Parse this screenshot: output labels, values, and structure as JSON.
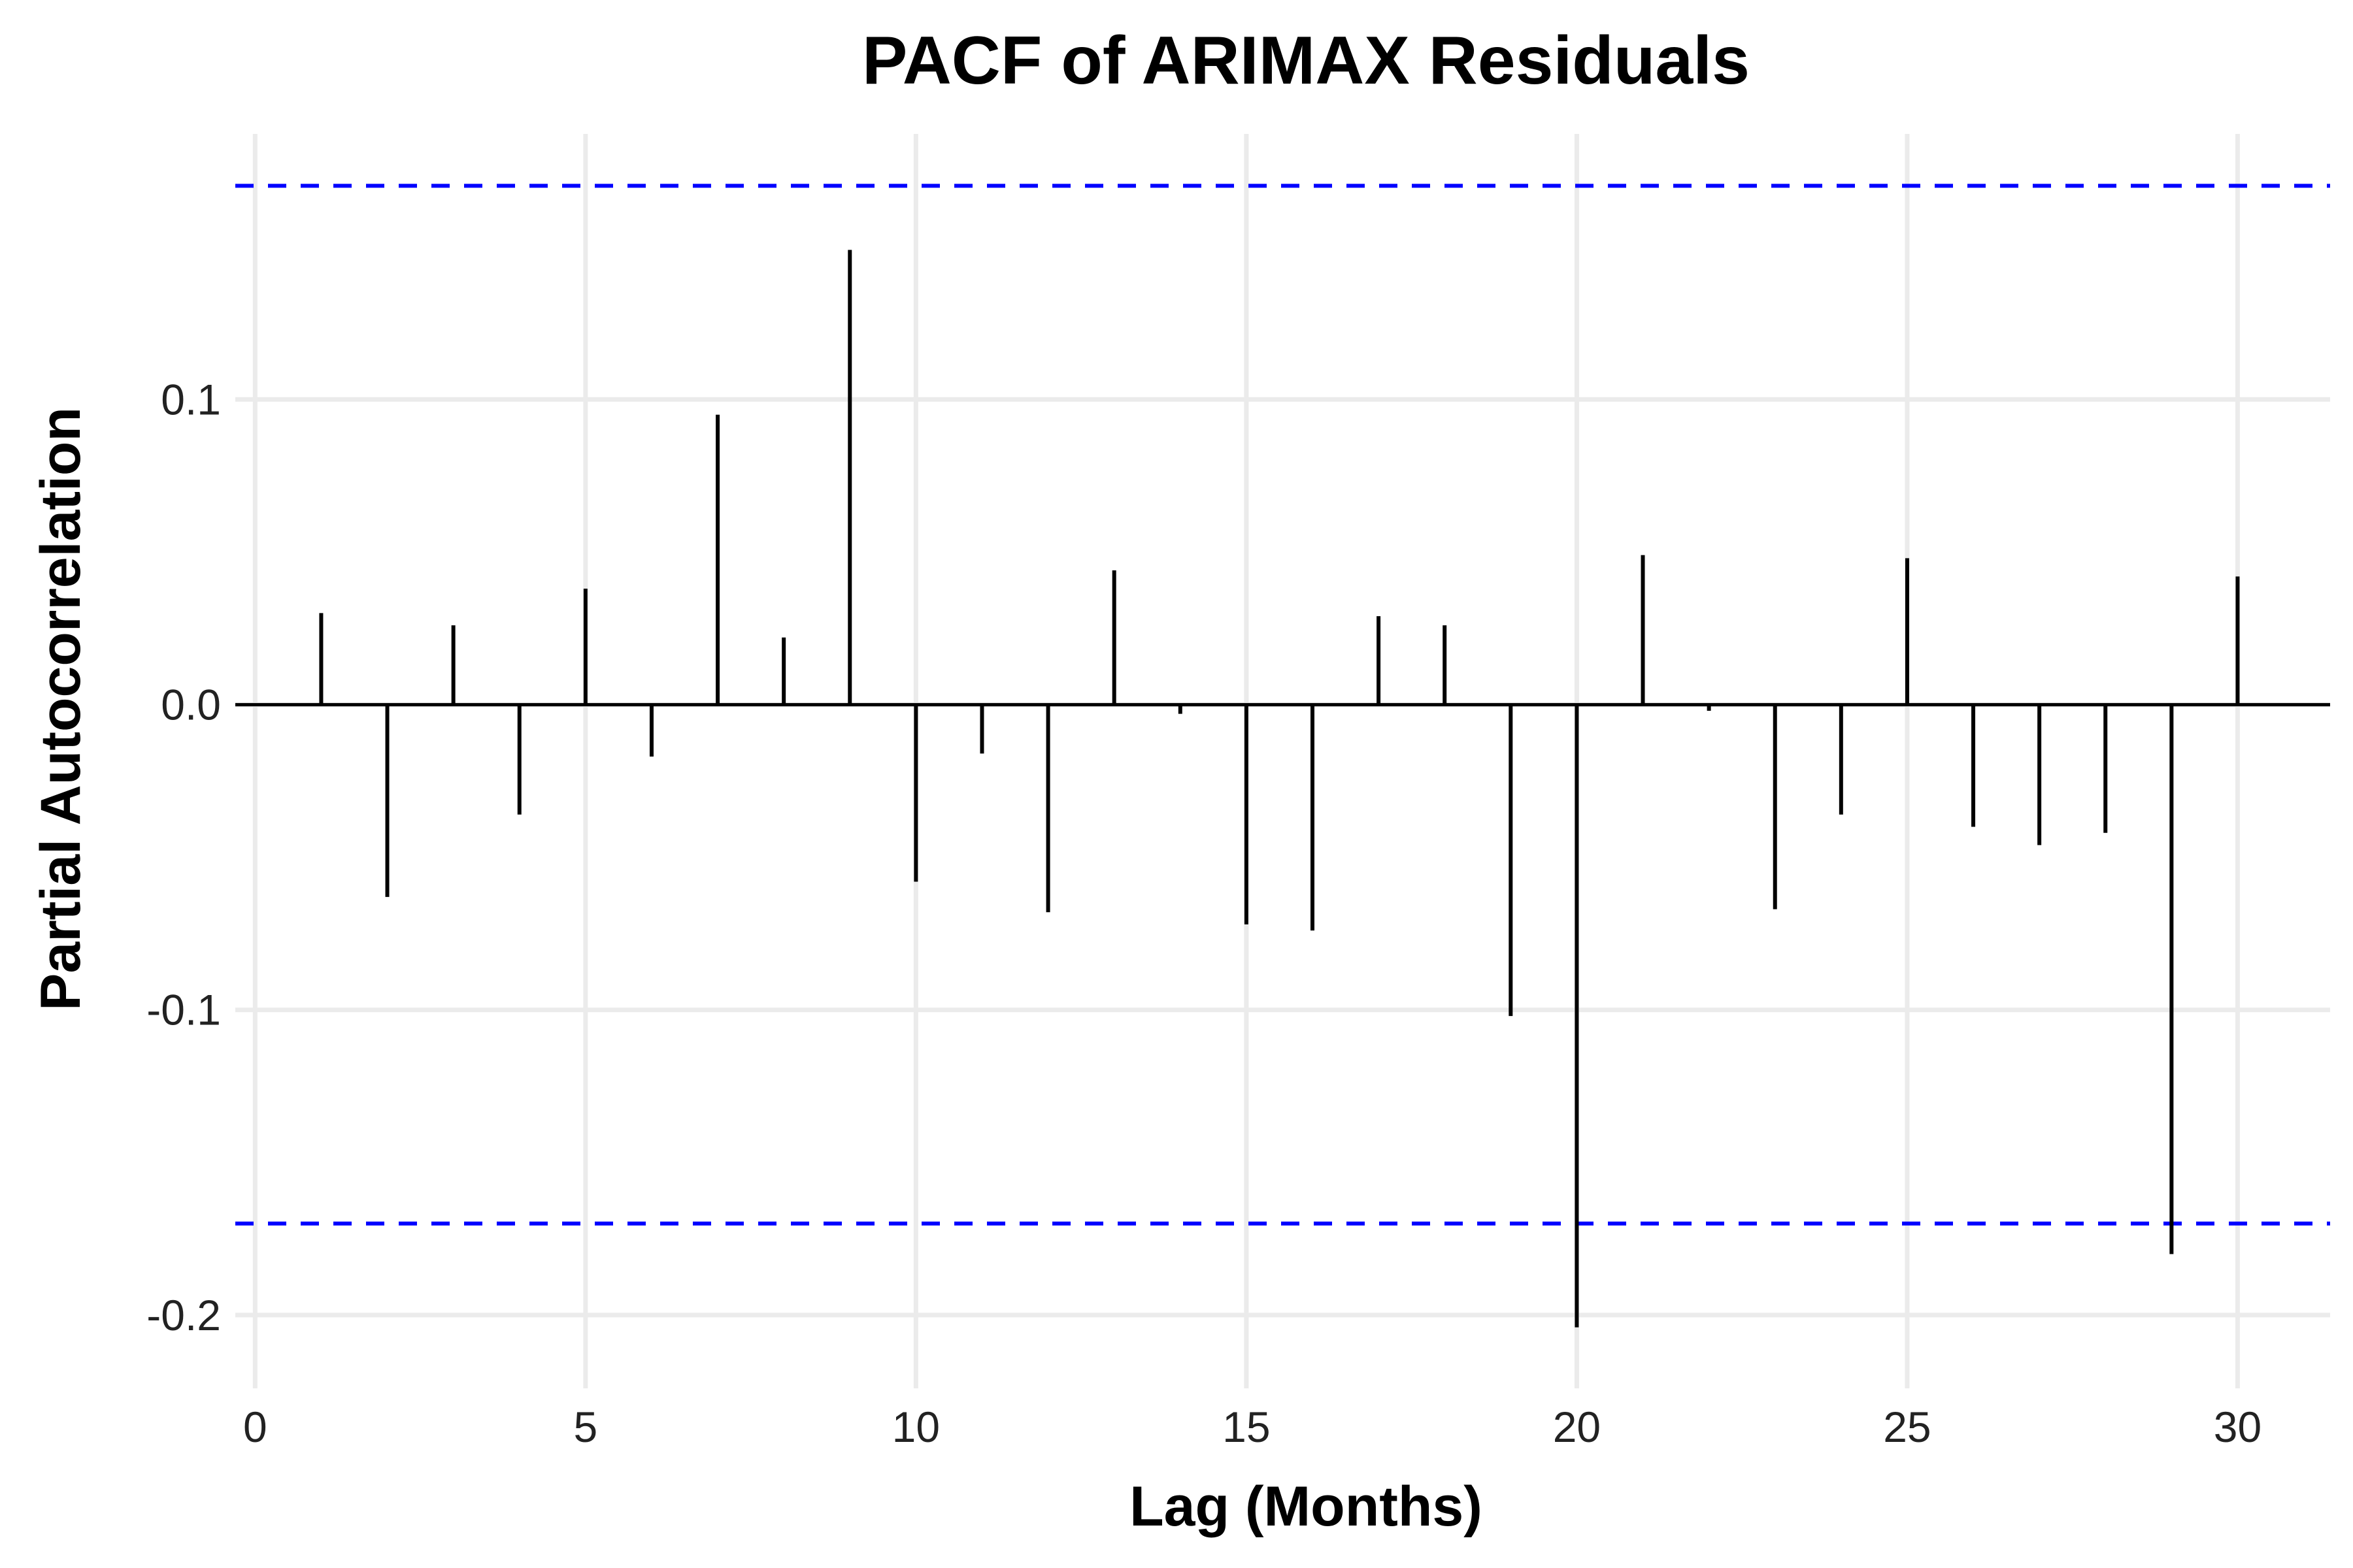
{
  "chart_data": {
    "type": "bar",
    "title": "PACF of ARIMAX Residuals",
    "xlabel": "Lag (Months)",
    "ylabel": "Partial Autocorrelation",
    "x": [
      1,
      2,
      3,
      4,
      5,
      6,
      7,
      8,
      9,
      10,
      11,
      12,
      13,
      14,
      15,
      16,
      17,
      18,
      19,
      20,
      21,
      22,
      23,
      24,
      25,
      26,
      27,
      28,
      29,
      30
    ],
    "values": [
      0.03,
      -0.063,
      0.026,
      -0.036,
      0.038,
      -0.017,
      0.095,
      0.022,
      0.149,
      -0.058,
      -0.016,
      -0.068,
      0.044,
      -0.003,
      -0.072,
      -0.074,
      0.029,
      0.026,
      -0.102,
      -0.204,
      0.049,
      -0.002,
      -0.067,
      -0.036,
      0.048,
      -0.04,
      -0.046,
      -0.042,
      -0.18,
      0.042
    ],
    "confidence_band": [
      -0.17,
      0.17
    ],
    "confidence_band_color": "#0000ff",
    "bar_color": "#000000",
    "xlim": [
      -0.3,
      31.4
    ],
    "ylim": [
      -0.224,
      0.187
    ],
    "xticks": [
      0,
      5,
      10,
      15,
      20,
      25,
      30
    ],
    "xtick_labels": [
      "0",
      "5",
      "10",
      "15",
      "20",
      "25",
      "30"
    ],
    "yticks": [
      -0.2,
      -0.1,
      0.0,
      0.1
    ],
    "ytick_labels": [
      "-0.2",
      "-0.1",
      "0.0",
      "0.1"
    ],
    "grid": true,
    "legend": "none"
  }
}
